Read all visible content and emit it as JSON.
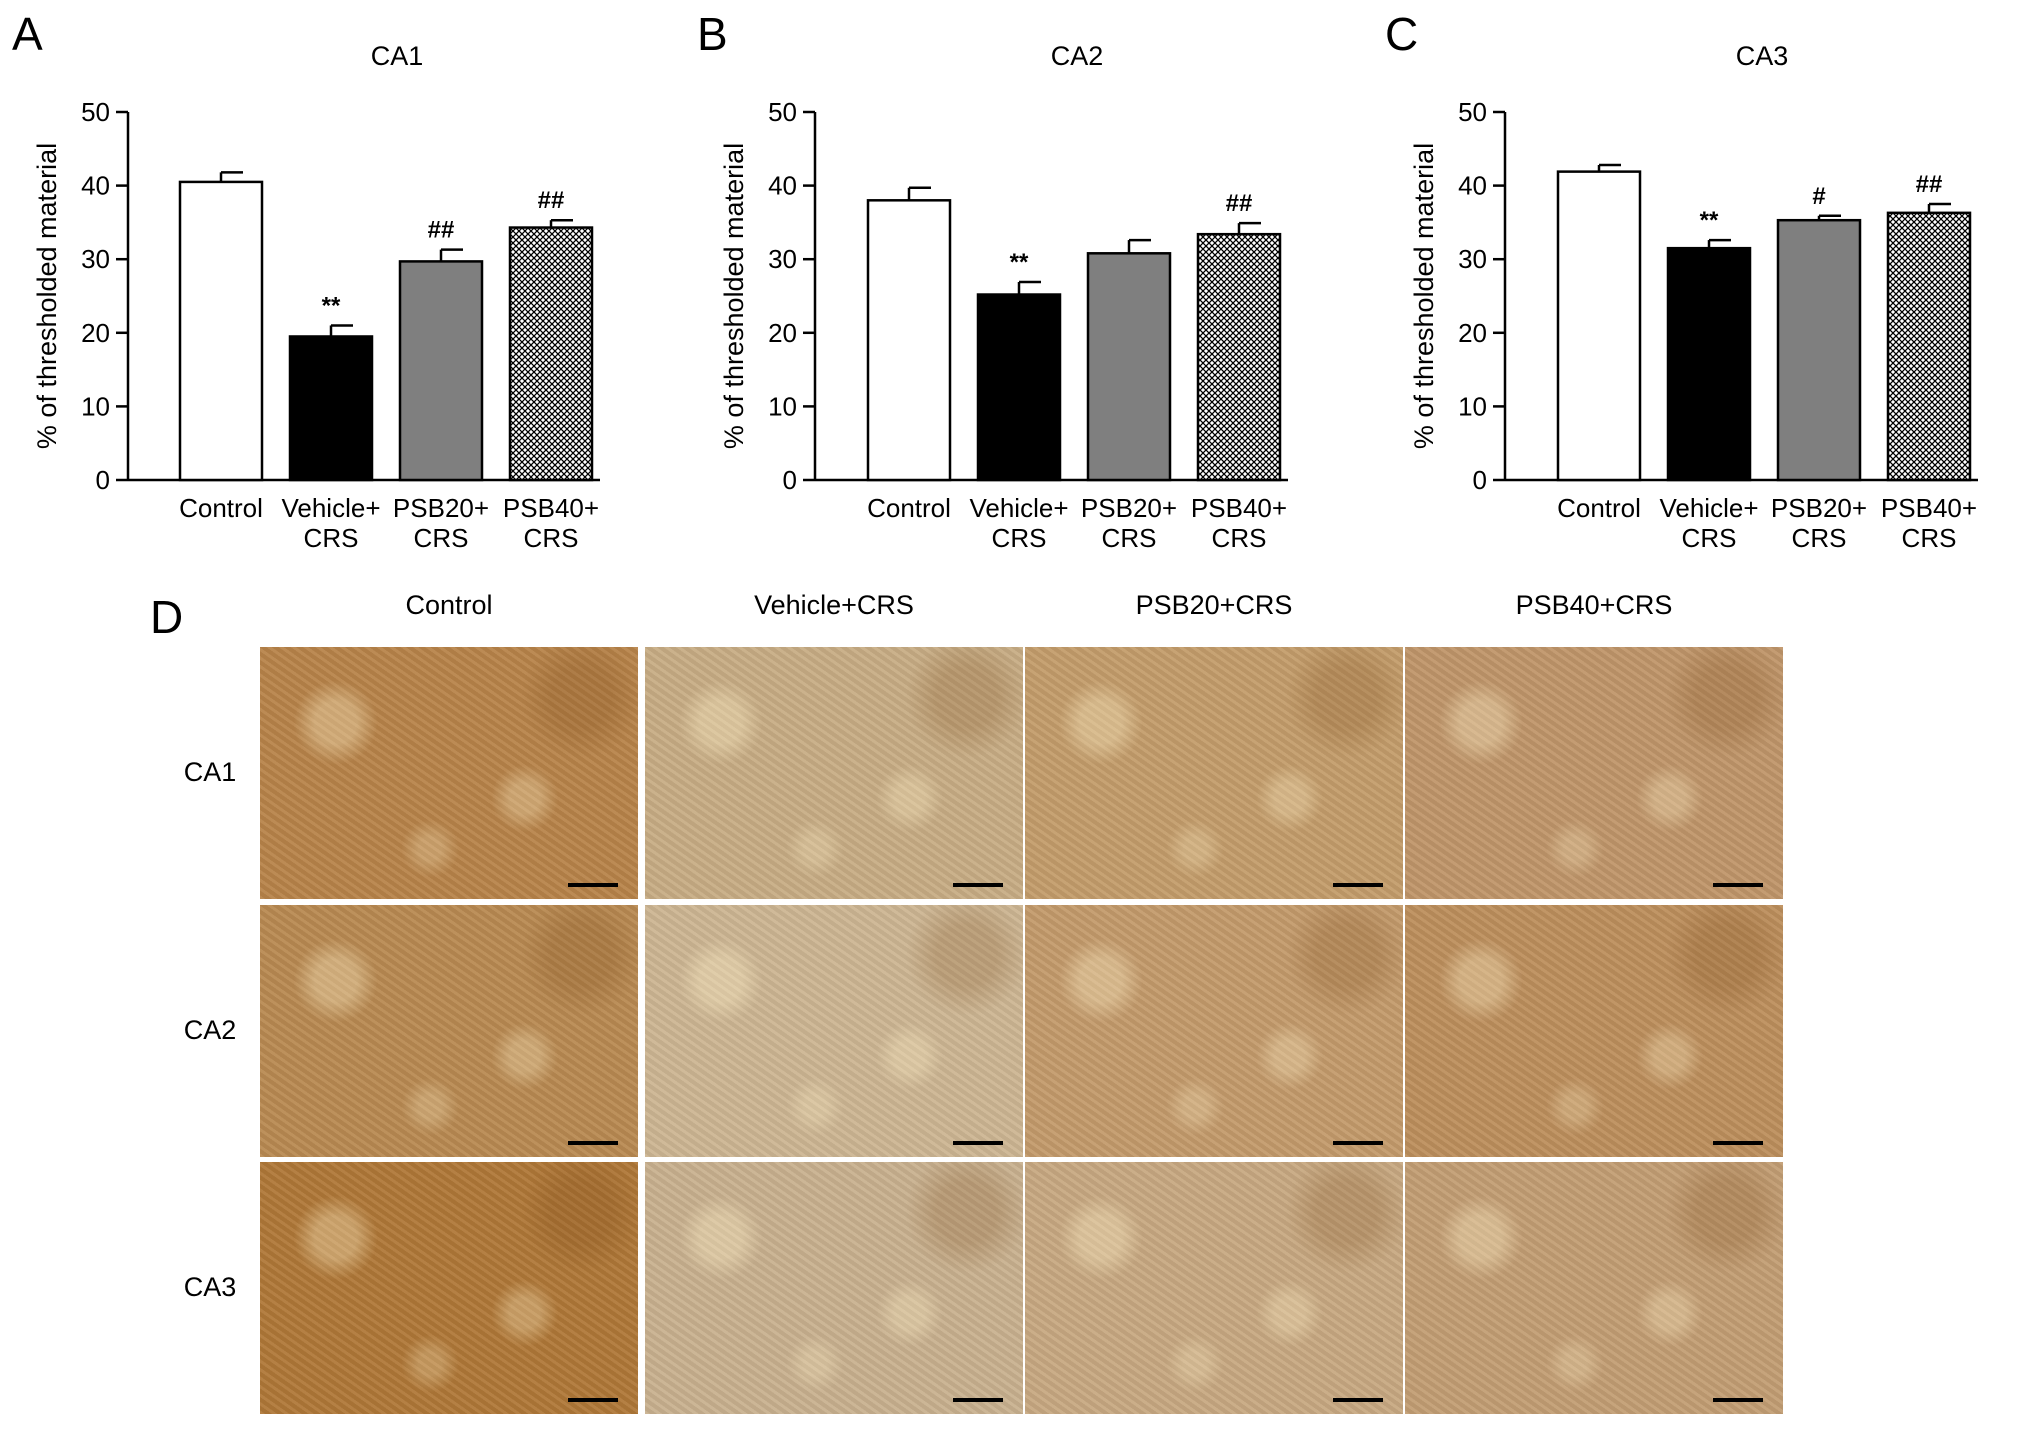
{
  "panels": {
    "A": "A",
    "B": "B",
    "C": "C",
    "D": "D"
  },
  "colors": {
    "control": "#ffffff",
    "vehicle": "#000000",
    "psb20": "#7f7f7f",
    "psb40_pattern": "crosshatch"
  },
  "chart_data": [
    {
      "type": "bar",
      "title": "CA1",
      "ylabel": "% of thresholded material",
      "ylim": [
        0,
        50
      ],
      "yticks": [
        0,
        10,
        20,
        30,
        40,
        50
      ],
      "categories": [
        [
          "Control"
        ],
        [
          "Vehicle+",
          "CRS"
        ],
        [
          "PSB20+",
          "CRS"
        ],
        [
          "PSB40+",
          "CRS"
        ]
      ],
      "values": [
        40.5,
        19.5,
        29.7,
        34.3
      ],
      "errors": [
        1.3,
        1.5,
        1.6,
        1.0
      ],
      "annotations": [
        "",
        "**",
        "##",
        "##"
      ]
    },
    {
      "type": "bar",
      "title": "CA2",
      "ylabel": "% of thresholded material",
      "ylim": [
        0,
        50
      ],
      "yticks": [
        0,
        10,
        20,
        30,
        40,
        50
      ],
      "categories": [
        [
          "Control"
        ],
        [
          "Vehicle+",
          "CRS"
        ],
        [
          "PSB20+",
          "CRS"
        ],
        [
          "PSB40+",
          "CRS"
        ]
      ],
      "values": [
        38.0,
        25.2,
        30.8,
        33.4
      ],
      "errors": [
        1.7,
        1.7,
        1.8,
        1.5
      ],
      "annotations": [
        "",
        "**",
        "",
        "##"
      ]
    },
    {
      "type": "bar",
      "title": "CA3",
      "ylabel": "% of thresholded material",
      "ylim": [
        0,
        50
      ],
      "yticks": [
        0,
        10,
        20,
        30,
        40,
        50
      ],
      "categories": [
        [
          "Control"
        ],
        [
          "Vehicle+",
          "CRS"
        ],
        [
          "PSB20+",
          "CRS"
        ],
        [
          "PSB40+",
          "CRS"
        ]
      ],
      "values": [
        41.9,
        31.5,
        35.3,
        36.3
      ],
      "errors": [
        0.9,
        1.1,
        0.6,
        1.2
      ],
      "annotations": [
        "",
        "**",
        "#",
        "##"
      ]
    }
  ],
  "micrographs": {
    "columns": [
      "Control",
      "Vehicle+CRS",
      "PSB20+CRS",
      "PSB40+CRS"
    ],
    "rows": [
      "CA1",
      "CA2",
      "CA3"
    ],
    "tints": [
      [
        "#b8844a",
        "#c8ad85",
        "#c49d6b",
        "#c0966a"
      ],
      [
        "#b98a52",
        "#cdb693",
        "#c49b6c",
        "#bd8f5d"
      ],
      [
        "#b07838",
        "#c9b18f",
        "#c8a982",
        "#c39e74"
      ]
    ]
  }
}
